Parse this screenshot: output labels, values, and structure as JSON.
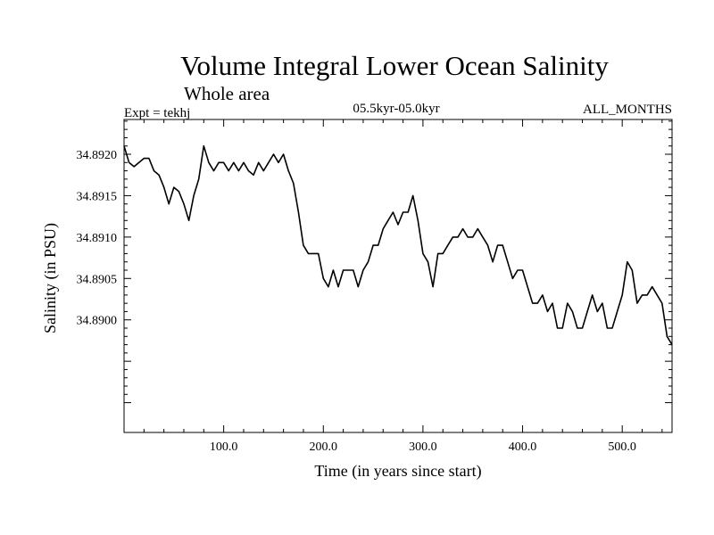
{
  "chart_data": {
    "type": "line",
    "title": "Volume Integral Lower Ocean Salinity",
    "subtitle": "Whole area",
    "expt_label": "Expt = tekhj",
    "period_label": "05.5kyr-05.0kyr",
    "months_label": "ALL_MONTHS",
    "xlabel": "Time (in years since start)",
    "ylabel": "Salinity (in PSU)",
    "xlim": [
      0,
      550
    ],
    "ylim": [
      34.88864,
      34.89242
    ],
    "x_ticks": [
      100,
      200,
      300,
      400,
      500
    ],
    "x_tick_labels": [
      "100.0",
      "200.0",
      "300.0",
      "400.0",
      "500.0"
    ],
    "y_ticks": [
      34.89,
      34.8905,
      34.891,
      34.8915,
      34.892
    ],
    "y_tick_labels": [
      "34.8900",
      "34.8905",
      "34.8910",
      "34.8915",
      "34.8920"
    ],
    "grid": false,
    "series": [
      {
        "name": "salinity",
        "x": [
          0,
          5,
          10,
          15,
          20,
          25,
          30,
          35,
          40,
          45,
          50,
          55,
          60,
          65,
          70,
          75,
          80,
          85,
          90,
          95,
          100,
          105,
          110,
          115,
          120,
          125,
          130,
          135,
          140,
          145,
          150,
          155,
          160,
          165,
          170,
          175,
          180,
          185,
          190,
          195,
          200,
          205,
          210,
          215,
          220,
          225,
          230,
          235,
          240,
          245,
          250,
          255,
          260,
          265,
          270,
          275,
          280,
          285,
          290,
          295,
          300,
          305,
          310,
          315,
          320,
          325,
          330,
          335,
          340,
          345,
          350,
          355,
          360,
          365,
          370,
          375,
          380,
          385,
          390,
          395,
          400,
          405,
          410,
          415,
          420,
          425,
          430,
          435,
          440,
          445,
          450,
          455,
          460,
          465,
          470,
          475,
          480,
          485,
          490,
          495,
          500,
          505,
          510,
          515,
          520,
          525,
          530,
          535,
          540,
          545,
          550
        ],
        "values": [
          34.8921,
          34.8919,
          34.89185,
          34.8919,
          34.89195,
          34.89195,
          34.8918,
          34.89175,
          34.8916,
          34.8914,
          34.8916,
          34.89155,
          34.8914,
          34.8912,
          34.8915,
          34.8917,
          34.8921,
          34.8919,
          34.8918,
          34.8919,
          34.8919,
          34.8918,
          34.8919,
          34.8918,
          34.8919,
          34.8918,
          34.89175,
          34.8919,
          34.8918,
          34.8919,
          34.892,
          34.8919,
          34.892,
          34.8918,
          34.89165,
          34.8913,
          34.8909,
          34.8908,
          34.8908,
          34.8908,
          34.8905,
          34.8904,
          34.8906,
          34.8904,
          34.8906,
          34.8906,
          34.8906,
          34.8904,
          34.8906,
          34.8907,
          34.8909,
          34.8909,
          34.8911,
          34.8912,
          34.8913,
          34.89115,
          34.8913,
          34.8913,
          34.8915,
          34.8912,
          34.8908,
          34.8907,
          34.8904,
          34.8908,
          34.8908,
          34.8909,
          34.891,
          34.891,
          34.8911,
          34.891,
          34.891,
          34.8911,
          34.891,
          34.8909,
          34.8907,
          34.8909,
          34.8909,
          34.8907,
          34.8905,
          34.8906,
          34.8906,
          34.8904,
          34.8902,
          34.8902,
          34.8903,
          34.8901,
          34.8902,
          34.8899,
          34.8899,
          34.8902,
          34.8901,
          34.8899,
          34.8899,
          34.8901,
          34.8903,
          34.8901,
          34.8902,
          34.8899,
          34.8899,
          34.8901,
          34.8903,
          34.8907,
          34.8906,
          34.8902,
          34.8903,
          34.8903,
          34.8904,
          34.8903,
          34.8902,
          34.8898,
          34.8897
        ]
      }
    ]
  }
}
